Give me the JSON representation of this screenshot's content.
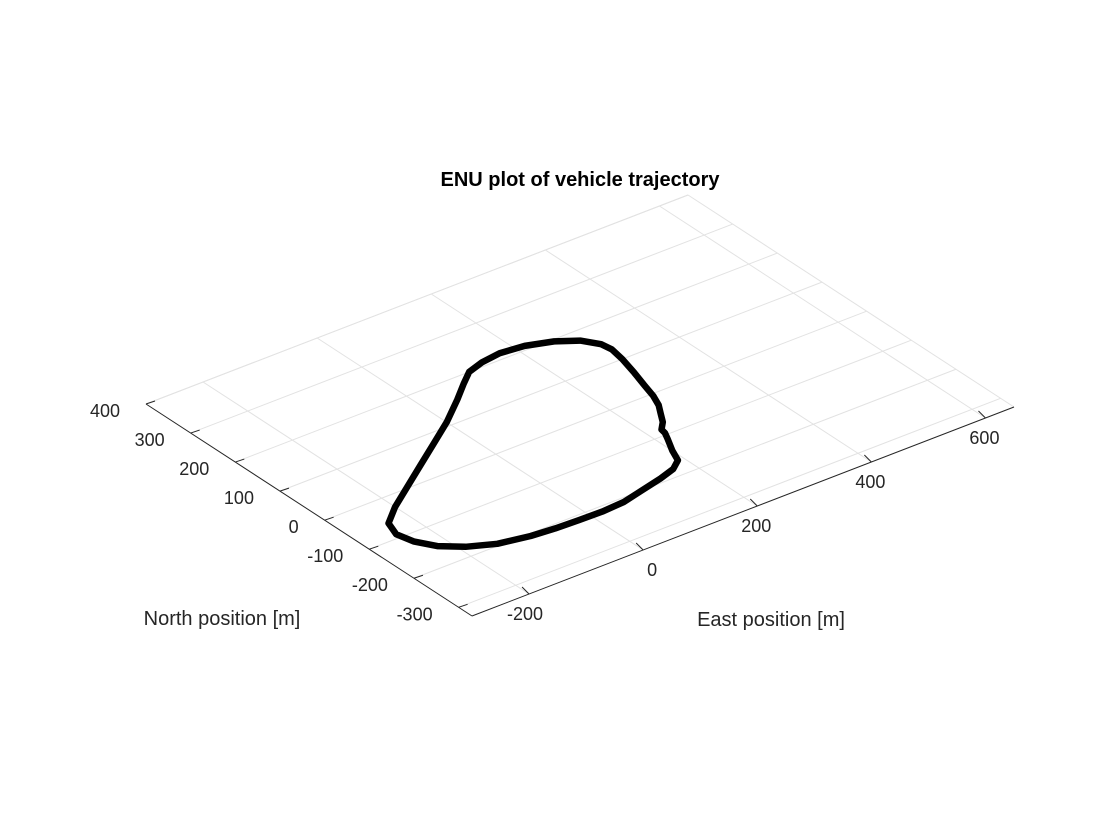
{
  "chart_data": {
    "type": "line",
    "projection": "3d-view",
    "title": "ENU plot of vehicle trajectory",
    "xlabel": "East position [m]",
    "ylabel": "North position [m]",
    "xlim": [
      -300,
      650
    ],
    "ylim": [
      -330,
      400
    ],
    "grid": true,
    "x_ticks": [
      -200,
      0,
      200,
      400,
      600
    ],
    "y_ticks": [
      -300,
      -200,
      -100,
      0,
      100,
      200,
      300,
      400
    ],
    "x_tick_labels": [
      "-200",
      "0",
      "200",
      "400",
      "600"
    ],
    "y_tick_labels": [
      "-300",
      "-200",
      "-100",
      "0",
      "100",
      "200",
      "300",
      "400"
    ],
    "series": [
      {
        "color": "#000000",
        "points": [
          [
            -60,
            -210
          ],
          [
            -20,
            -212
          ],
          [
            20,
            -213
          ],
          [
            60,
            -210
          ],
          [
            100,
            -200
          ],
          [
            140,
            -190
          ],
          [
            170,
            -180
          ],
          [
            190,
            -165
          ],
          [
            200,
            -140
          ],
          [
            215,
            -110
          ],
          [
            222,
            -95
          ],
          [
            224,
            -85
          ],
          [
            238,
            -70
          ],
          [
            250,
            -50
          ],
          [
            262,
            -30
          ],
          [
            272,
            -5
          ],
          [
            280,
            25
          ],
          [
            290,
            60
          ],
          [
            300,
            100
          ],
          [
            305,
            130
          ],
          [
            302,
            150
          ],
          [
            285,
            175
          ],
          [
            255,
            195
          ],
          [
            215,
            210
          ],
          [
            175,
            215
          ],
          [
            140,
            210
          ],
          [
            110,
            200
          ],
          [
            85,
            180
          ],
          [
            50,
            150
          ],
          [
            0,
            110
          ],
          [
            -50,
            75
          ],
          [
            -100,
            40
          ],
          [
            -150,
            5
          ],
          [
            -200,
            -30
          ],
          [
            -235,
            -60
          ],
          [
            -245,
            -90
          ],
          [
            -238,
            -120
          ],
          [
            -220,
            -150
          ],
          [
            -190,
            -175
          ],
          [
            -150,
            -195
          ],
          [
            -100,
            -206
          ],
          [
            -60,
            -210
          ]
        ]
      }
    ]
  }
}
